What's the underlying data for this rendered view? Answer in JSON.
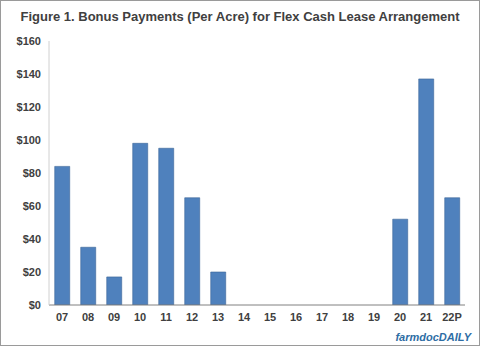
{
  "chart_data": {
    "type": "bar",
    "title": "Figure 1. Bonus Payments (Per Acre) for Flex Cash Lease Arrangement",
    "categories": [
      "07",
      "08",
      "09",
      "10",
      "11",
      "12",
      "13",
      "14",
      "15",
      "16",
      "17",
      "18",
      "19",
      "20",
      "21",
      "22P"
    ],
    "values": [
      84,
      35,
      17,
      98,
      95,
      65,
      20,
      0,
      0,
      0,
      0,
      0,
      0,
      52,
      137,
      65
    ],
    "color": "#4f81bd",
    "ylim": [
      0,
      160
    ],
    "yticks": [
      {
        "value": 0,
        "label": "$0"
      },
      {
        "value": 20,
        "label": "$20"
      },
      {
        "value": 40,
        "label": "$40"
      },
      {
        "value": 60,
        "label": "$60"
      },
      {
        "value": 80,
        "label": "$80"
      },
      {
        "value": 100,
        "label": "$100"
      },
      {
        "value": 120,
        "label": "$120"
      },
      {
        "value": 140,
        "label": "$140"
      },
      {
        "value": 160,
        "label": "$160"
      }
    ],
    "grid": false,
    "annotations": [
      "farmdocDAILY"
    ]
  }
}
